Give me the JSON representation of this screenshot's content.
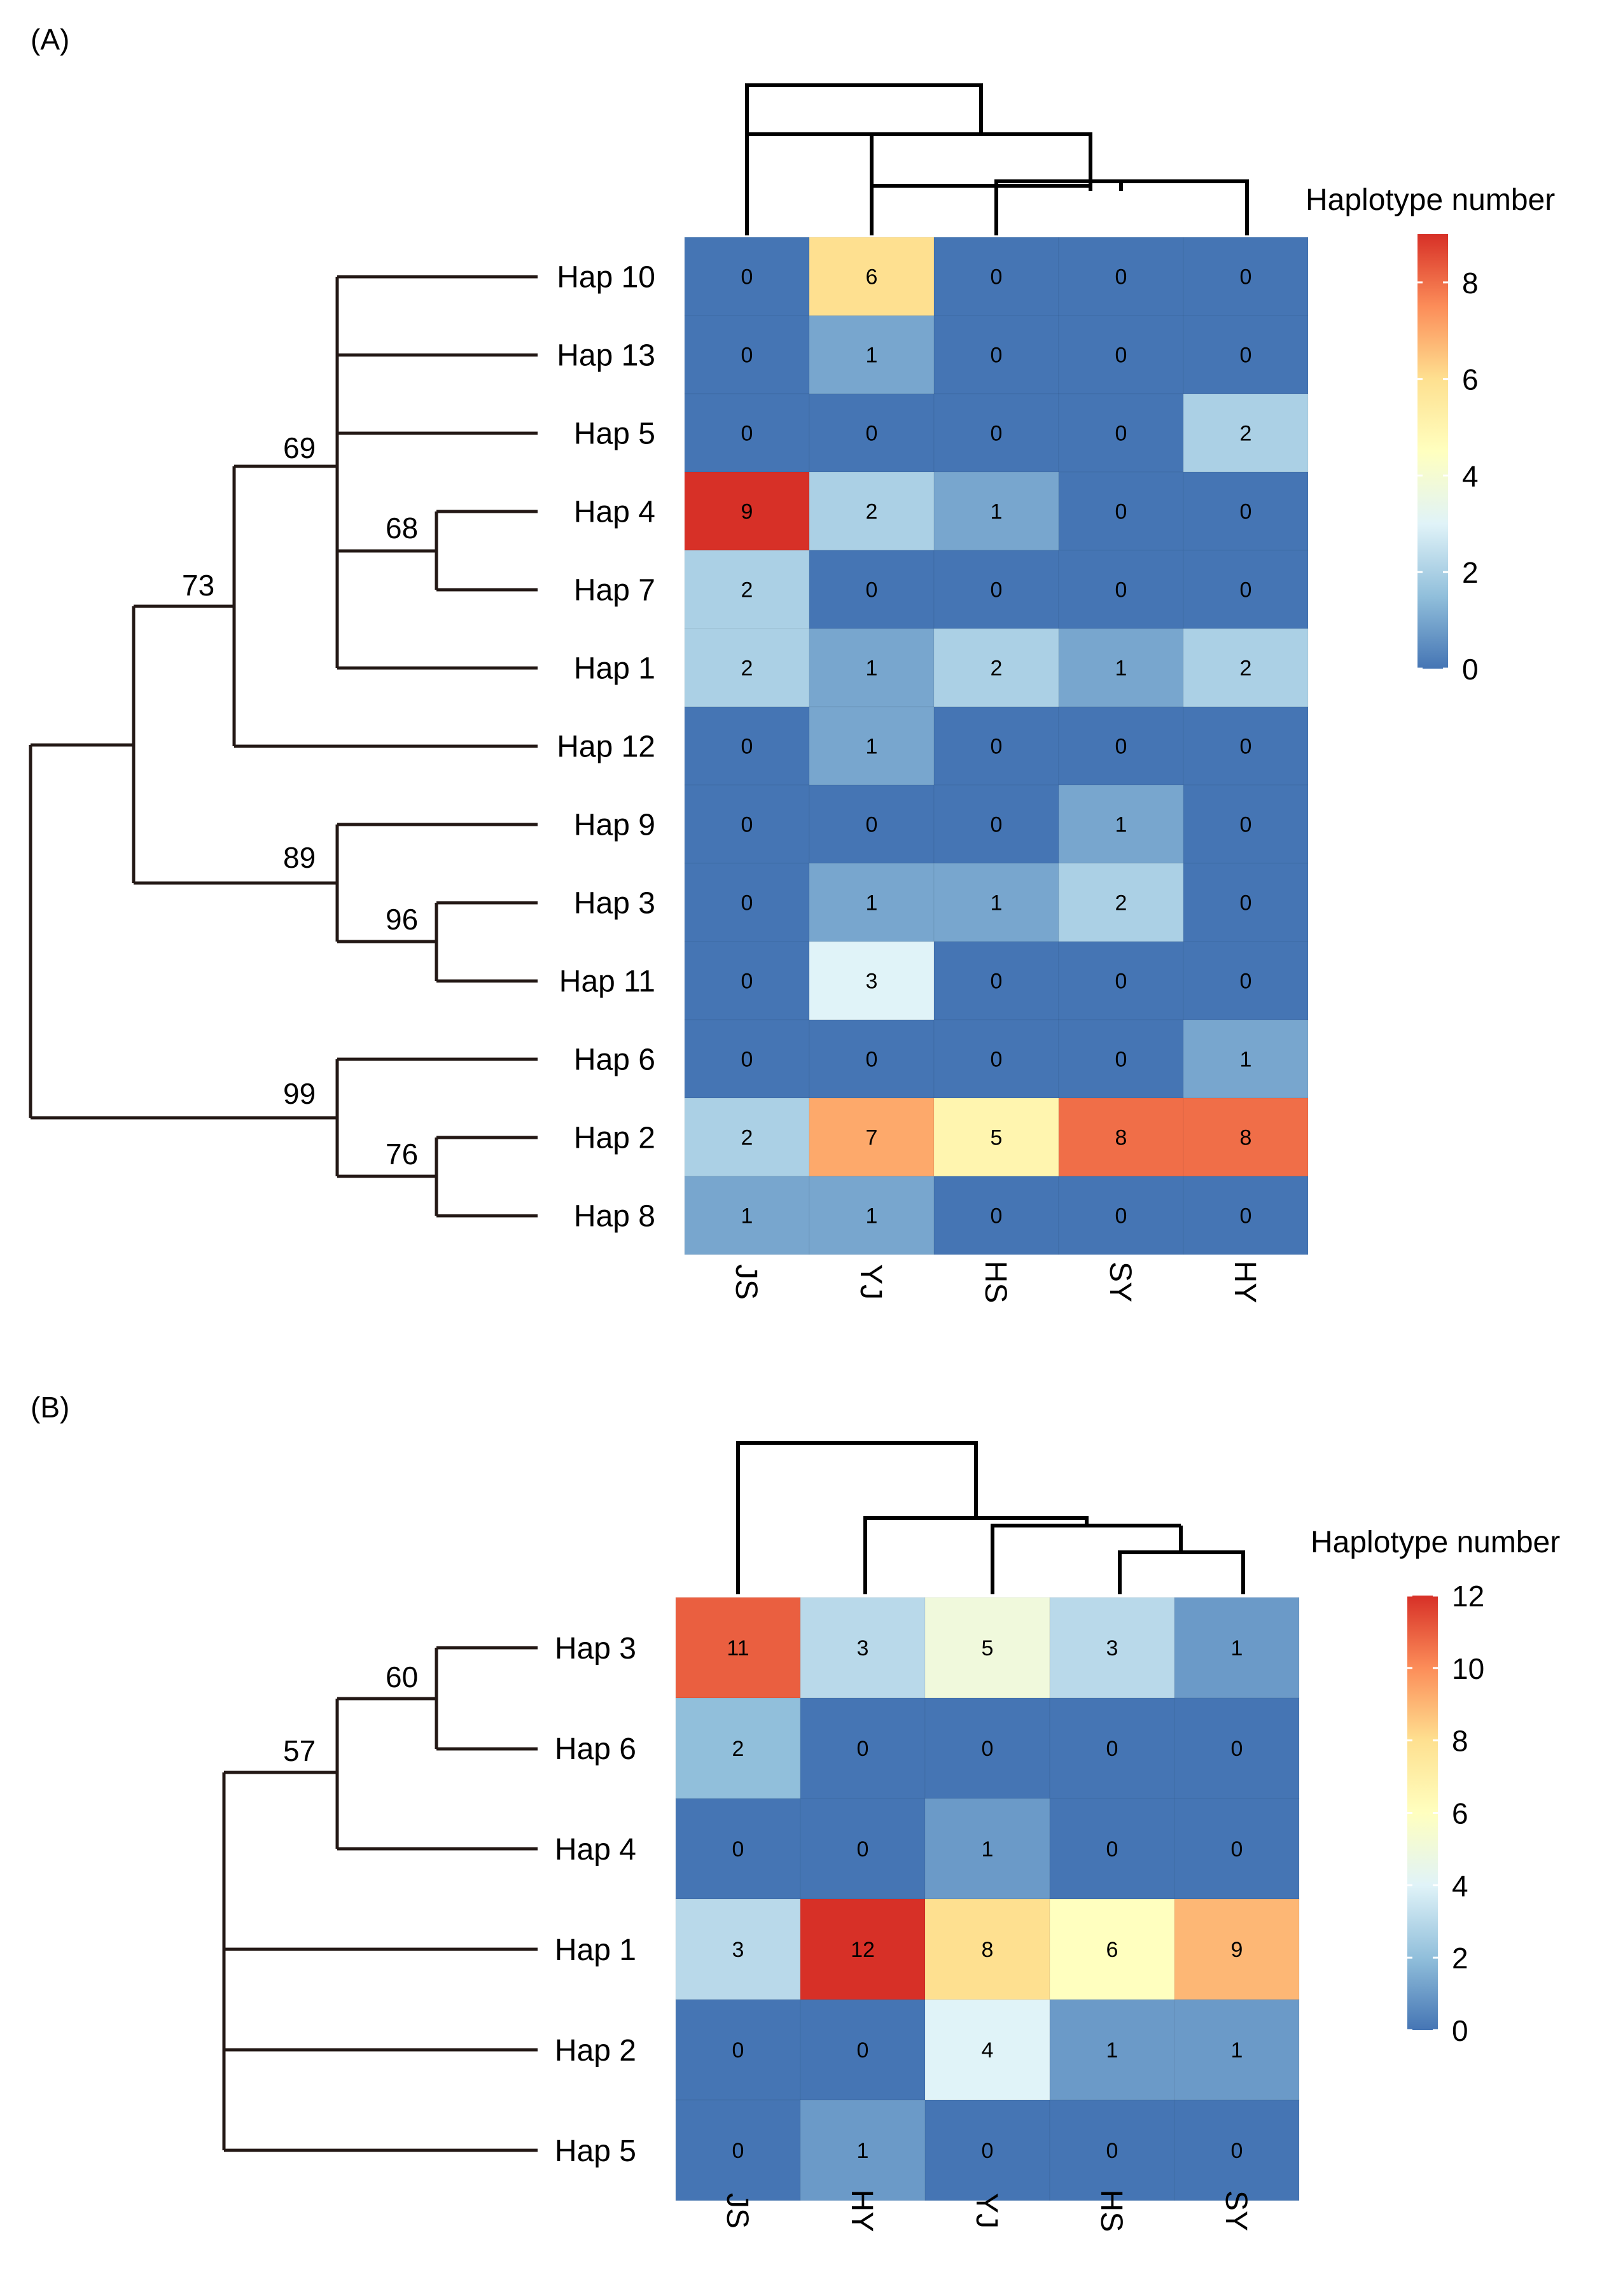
{
  "chart_data": [
    {
      "type": "heatmap",
      "panel_label": "(A)",
      "rows": [
        "Hap 10",
        "Hap 13",
        "Hap 5",
        "Hap 4",
        "Hap 7",
        "Hap 1",
        "Hap 12",
        "Hap 9",
        "Hap 3",
        "Hap 11",
        "Hap 6",
        "Hap 2",
        "Hap 8"
      ],
      "columns": [
        "JS",
        "YJ",
        "HS",
        "SY",
        "HY"
      ],
      "values": [
        [
          0,
          6,
          0,
          0,
          0
        ],
        [
          0,
          1,
          0,
          0,
          0
        ],
        [
          0,
          0,
          0,
          0,
          2
        ],
        [
          9,
          2,
          1,
          0,
          0
        ],
        [
          2,
          0,
          0,
          0,
          0
        ],
        [
          2,
          1,
          2,
          1,
          2
        ],
        [
          0,
          1,
          0,
          0,
          0
        ],
        [
          0,
          0,
          0,
          1,
          0
        ],
        [
          0,
          1,
          1,
          2,
          0
        ],
        [
          0,
          3,
          0,
          0,
          0
        ],
        [
          0,
          0,
          0,
          0,
          1
        ],
        [
          2,
          7,
          5,
          8,
          8
        ],
        [
          1,
          1,
          0,
          0,
          0
        ]
      ],
      "bootstrap_values": [
        "69",
        "68",
        "73",
        "89",
        "96",
        "99",
        "76"
      ],
      "legend": {
        "title": "Haplotype number",
        "min": 0,
        "max": 9,
        "ticks": [
          "0",
          "2",
          "4",
          "6",
          "8"
        ],
        "colors": [
          "#4575b4",
          "#91bfdb",
          "#e0f3f8",
          "#ffffbf",
          "#fee090",
          "#fc8d59",
          "#d73027"
        ]
      }
    },
    {
      "type": "heatmap",
      "panel_label": "(B)",
      "rows": [
        "Hap 3",
        "Hap 6",
        "Hap 4",
        "Hap 1",
        "Hap 2",
        "Hap 5"
      ],
      "columns": [
        "JS",
        "HY",
        "YJ",
        "HS",
        "SY"
      ],
      "values": [
        [
          11,
          3,
          5,
          3,
          1
        ],
        [
          2,
          0,
          0,
          0,
          0
        ],
        [
          0,
          0,
          1,
          0,
          0
        ],
        [
          3,
          12,
          8,
          6,
          9
        ],
        [
          0,
          0,
          4,
          1,
          1
        ],
        [
          0,
          1,
          0,
          0,
          0
        ]
      ],
      "bootstrap_values": [
        "60",
        "57"
      ],
      "legend": {
        "title": "Haplotype number",
        "min": 0,
        "max": 12,
        "ticks": [
          "0",
          "2",
          "4",
          "6",
          "8",
          "10",
          "12"
        ],
        "colors": [
          "#4575b4",
          "#91bfdb",
          "#e0f3f8",
          "#ffffbf",
          "#fee090",
          "#fc8d59",
          "#d73027"
        ]
      }
    }
  ]
}
